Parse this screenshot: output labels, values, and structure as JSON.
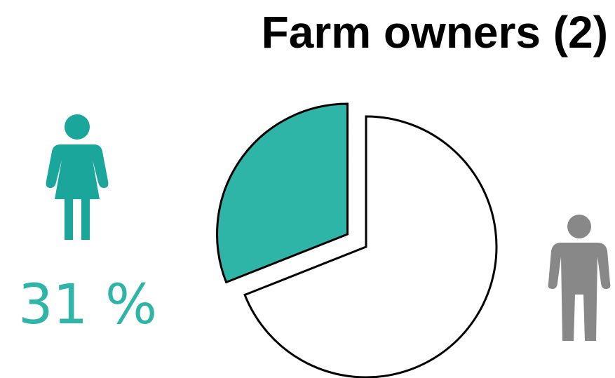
{
  "title": "Farm owners (2)",
  "female_label": "31 %",
  "icons": {
    "female": "woman-icon",
    "male": "man-icon"
  },
  "colors": {
    "female": "#2fb5a8",
    "female_icon": "#1aa69b",
    "male_icon": "#888888",
    "male_slice": "#ffffff",
    "outline": "#000000"
  },
  "chart_data": {
    "type": "pie",
    "title": "Farm owners (2)",
    "categories": [
      "Women",
      "Men"
    ],
    "values": [
      31,
      69
    ],
    "labels": [
      "31 %",
      ""
    ],
    "exploded": [
      "Women"
    ],
    "legend": "none"
  }
}
